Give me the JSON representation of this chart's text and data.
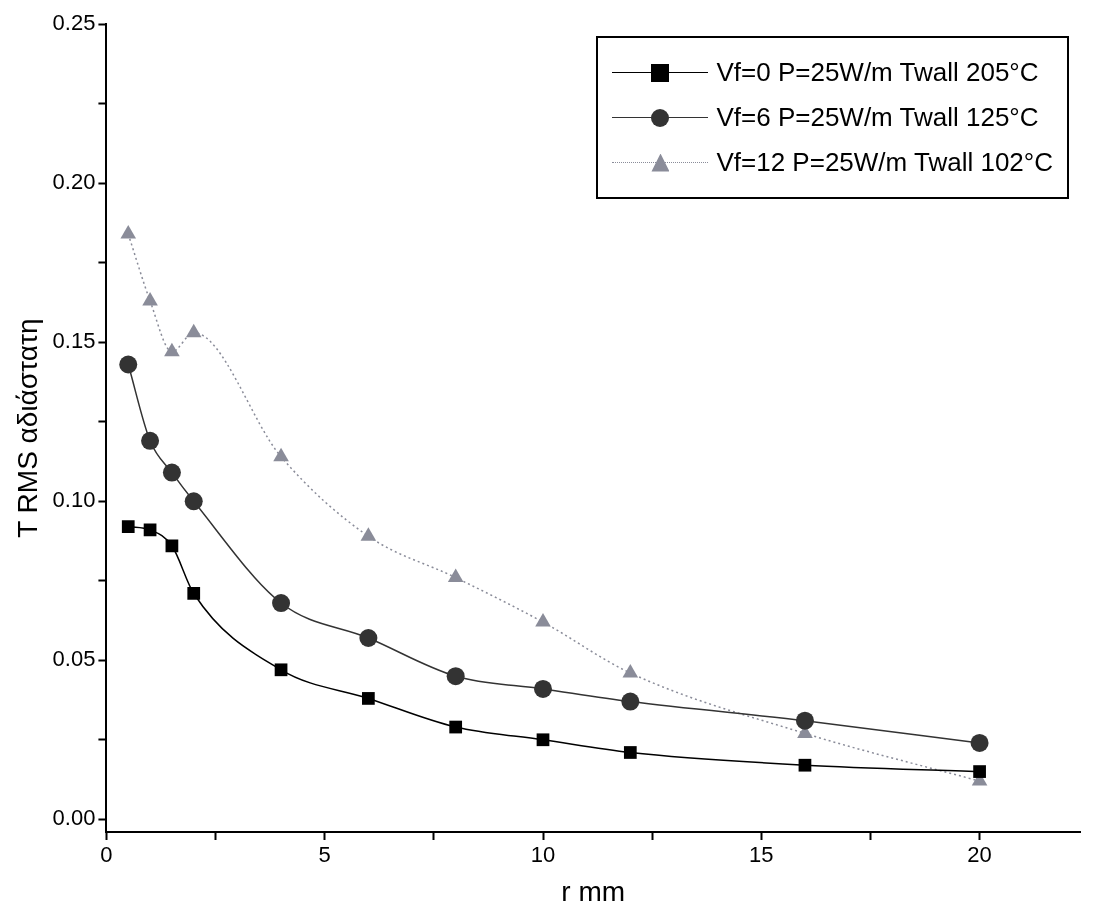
{
  "chart_data": {
    "type": "line",
    "xlabel": "r mm",
    "ylabel": "T RMS αδιάστατη",
    "x": [
      0.5,
      1,
      1.5,
      2,
      4,
      6,
      8,
      10,
      12,
      16,
      20
    ],
    "xlim": [
      0,
      22.3
    ],
    "xticks": [
      0,
      {
        "value": 2.5,
        "label": null
      },
      5,
      {
        "value": 7.5,
        "label": null
      },
      10,
      {
        "value": 12.5,
        "label": null
      },
      15,
      {
        "value": 17.5,
        "label": null
      },
      20
    ],
    "ylim": [
      -0.004,
      0.25
    ],
    "yticks": [
      {
        "value": 0,
        "label": "0.00"
      },
      {
        "value": 0.025,
        "label": null
      },
      {
        "value": 0.05,
        "label": "0.05"
      },
      {
        "value": 0.075,
        "label": null
      },
      {
        "value": 0.1,
        "label": "0.10"
      },
      {
        "value": 0.125,
        "label": null
      },
      {
        "value": 0.15,
        "label": "0.15"
      },
      {
        "value": 0.175,
        "label": null
      },
      {
        "value": 0.2,
        "label": "0.20"
      },
      {
        "value": 0.225,
        "label": null
      },
      {
        "value": 0.25,
        "label": "0.25"
      }
    ],
    "grid": false,
    "legend": "top right",
    "series": [
      {
        "name": "Vf=0  P=25W/m Twall 205°C",
        "color": "#000000",
        "marker": "square",
        "line_style": "solid",
        "values": [
          0.092,
          0.091,
          0.086,
          0.071,
          0.047,
          0.038,
          0.029,
          0.025,
          0.021,
          0.017,
          0.015
        ]
      },
      {
        "name": "Vf=6  P=25W/m Twall 125°C",
        "color": "#333333",
        "marker": "circle",
        "line_style": "solid",
        "values": [
          0.143,
          0.119,
          0.109,
          0.1,
          0.068,
          0.057,
          0.045,
          0.041,
          0.037,
          0.031,
          0.024
        ]
      },
      {
        "name": "Vf=12 P=25W/m Twall 102°C",
        "color": "#8a8c99",
        "marker": "triangle",
        "line_style": "dotted",
        "values": [
          0.184,
          0.163,
          0.147,
          0.153,
          0.114,
          0.089,
          0.076,
          0.062,
          0.046,
          0.027,
          0.012
        ]
      }
    ]
  }
}
